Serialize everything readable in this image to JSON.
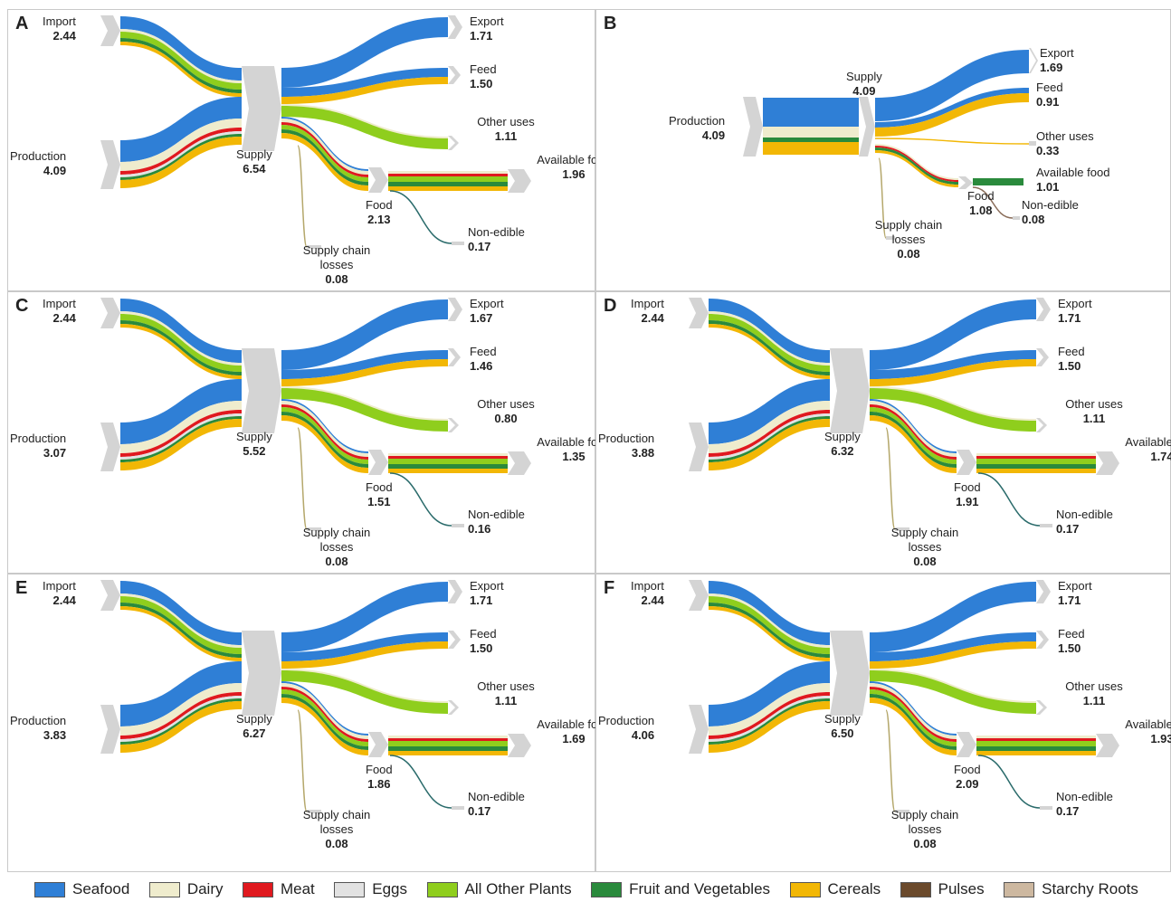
{
  "colors": {
    "Seafood": "#2f7fd6",
    "Dairy": "#efeccd",
    "Meat": "#e0191f",
    "Eggs": "#e2e2e2",
    "All Other Plants": "#8fce1d",
    "Fruit and Vegetables": "#2a8a3c",
    "Cereals": "#f2b705",
    "Pulses": "#6b4a2c",
    "Starchy Roots": "#cdb8a0"
  },
  "legend": [
    {
      "name": "Seafood"
    },
    {
      "name": "Dairy"
    },
    {
      "name": "Meat"
    },
    {
      "name": "Eggs"
    },
    {
      "name": "All Other Plants"
    },
    {
      "name": "Fruit and Vegetables"
    },
    {
      "name": "Cereals"
    },
    {
      "name": "Pulses"
    },
    {
      "name": "Starchy Roots"
    }
  ],
  "panels": [
    {
      "id": "A",
      "nodes": {
        "import": {
          "name": "Import",
          "value": "2.44"
        },
        "production": {
          "name": "Production",
          "value": "4.09"
        },
        "supply": {
          "name": "Supply",
          "value": "6.54"
        },
        "export": {
          "name": "Export",
          "value": "1.71"
        },
        "feed": {
          "name": "Feed",
          "value": "1.50"
        },
        "other": {
          "name": "Other uses",
          "value": "1.11"
        },
        "food": {
          "name": "Food",
          "value": "2.13"
        },
        "available": {
          "name": "Available food",
          "value": "1.96"
        },
        "nonedible": {
          "name": "Non-edible",
          "value": "0.17"
        },
        "losses": {
          "name": "Supply chain losses",
          "value": "0.08"
        }
      }
    },
    {
      "id": "B",
      "nodes": {
        "import": null,
        "production": {
          "name": "Production",
          "value": "4.09"
        },
        "supply": {
          "name": "Supply",
          "value": "4.09"
        },
        "export": {
          "name": "Export",
          "value": "1.69"
        },
        "feed": {
          "name": "Feed",
          "value": "0.91"
        },
        "other": {
          "name": "Other uses",
          "value": "0.33"
        },
        "food": {
          "name": "Food",
          "value": "1.08"
        },
        "available": {
          "name": "Available food",
          "value": "1.01"
        },
        "nonedible": {
          "name": "Non-edible",
          "value": "0.08"
        },
        "losses": {
          "name": "Supply chain losses",
          "value": "0.08"
        }
      }
    },
    {
      "id": "C",
      "nodes": {
        "import": {
          "name": "Import",
          "value": "2.44"
        },
        "production": {
          "name": "Production",
          "value": "3.07"
        },
        "supply": {
          "name": "Supply",
          "value": "5.52"
        },
        "export": {
          "name": "Export",
          "value": "1.67"
        },
        "feed": {
          "name": "Feed",
          "value": "1.46"
        },
        "other": {
          "name": "Other uses",
          "value": "0.80"
        },
        "food": {
          "name": "Food",
          "value": "1.51"
        },
        "available": {
          "name": "Available food",
          "value": "1.35"
        },
        "nonedible": {
          "name": "Non-edible",
          "value": "0.16"
        },
        "losses": {
          "name": "Supply chain losses",
          "value": "0.08"
        }
      }
    },
    {
      "id": "D",
      "nodes": {
        "import": {
          "name": "Import",
          "value": "2.44"
        },
        "production": {
          "name": "Production",
          "value": "3.88"
        },
        "supply": {
          "name": "Supply",
          "value": "6.32"
        },
        "export": {
          "name": "Export",
          "value": "1.71"
        },
        "feed": {
          "name": "Feed",
          "value": "1.50"
        },
        "other": {
          "name": "Other uses",
          "value": "1.11"
        },
        "food": {
          "name": "Food",
          "value": "1.91"
        },
        "available": {
          "name": "Available food",
          "value": "1.74"
        },
        "nonedible": {
          "name": "Non-edible",
          "value": "0.17"
        },
        "losses": {
          "name": "Supply chain losses",
          "value": "0.08"
        }
      }
    },
    {
      "id": "E",
      "nodes": {
        "import": {
          "name": "Import",
          "value": "2.44"
        },
        "production": {
          "name": "Production",
          "value": "3.83"
        },
        "supply": {
          "name": "Supply",
          "value": "6.27"
        },
        "export": {
          "name": "Export",
          "value": "1.71"
        },
        "feed": {
          "name": "Feed",
          "value": "1.50"
        },
        "other": {
          "name": "Other uses",
          "value": "1.11"
        },
        "food": {
          "name": "Food",
          "value": "1.86"
        },
        "available": {
          "name": "Available food",
          "value": "1.69"
        },
        "nonedible": {
          "name": "Non-edible",
          "value": "0.17"
        },
        "losses": {
          "name": "Supply chain losses",
          "value": "0.08"
        }
      }
    },
    {
      "id": "F",
      "nodes": {
        "import": {
          "name": "Import",
          "value": "2.44"
        },
        "production": {
          "name": "Production",
          "value": "4.06"
        },
        "supply": {
          "name": "Supply",
          "value": "6.50"
        },
        "export": {
          "name": "Export",
          "value": "1.71"
        },
        "feed": {
          "name": "Feed",
          "value": "1.50"
        },
        "other": {
          "name": "Other uses",
          "value": "1.11"
        },
        "food": {
          "name": "Food",
          "value": "2.09"
        },
        "available": {
          "name": "Available food",
          "value": "1.93"
        },
        "nonedible": {
          "name": "Non-edible",
          "value": "0.17"
        },
        "losses": {
          "name": "Supply chain losses",
          "value": "0.08"
        }
      }
    }
  ]
}
